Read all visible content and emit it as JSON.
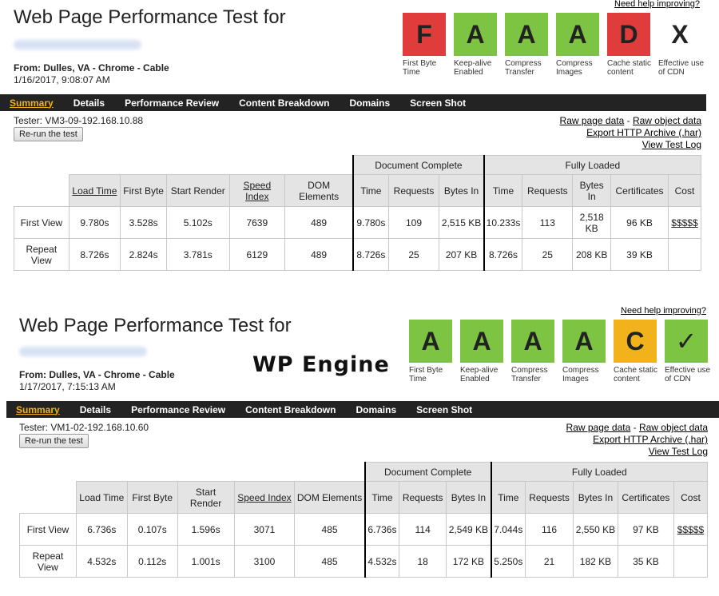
{
  "panels": [
    {
      "title": "Web Page Performance Test for",
      "from_label": "From:",
      "from_value": "Dulles, VA - Chrome - Cable",
      "date": "1/16/2017, 9:08:07 AM",
      "help_link": "Need help improving?",
      "grades": [
        {
          "grade": "F",
          "label": "First Byte Time",
          "color": "#e03c3c"
        },
        {
          "grade": "A",
          "label": "Keep-alive Enabled",
          "color": "#7dc442"
        },
        {
          "grade": "A",
          "label": "Compress Transfer",
          "color": "#7dc442"
        },
        {
          "grade": "A",
          "label": "Compress Images",
          "color": "#7dc442"
        },
        {
          "grade": "D",
          "label": "Cache static content",
          "color": "#e03c3c"
        },
        {
          "grade": "X",
          "label": "Effective use of CDN",
          "color": "#ffffff"
        }
      ],
      "nav": [
        "Summary",
        "Details",
        "Performance Review",
        "Content Breakdown",
        "Domains",
        "Screen Shot"
      ],
      "tester": "Tester: VM3-09-192.168.10.88",
      "rerun": "Re-run the test",
      "links": {
        "raw_page": "Raw page data",
        "sep": " - ",
        "raw_object": "Raw object data",
        "export": "Export HTTP Archive (.har)",
        "log": "View Test Log"
      },
      "table": {
        "groups": {
          "doc": "Document Complete",
          "full": "Fully Loaded"
        },
        "headers": [
          "Load Time",
          "First Byte",
          "Start Render",
          "Speed Index",
          "DOM Elements",
          "Time",
          "Requests",
          "Bytes In",
          "Time",
          "Requests",
          "Bytes In",
          "Certificates",
          "Cost"
        ],
        "rows": [
          {
            "label": "First View",
            "cells": [
              "9.780s",
              "3.528s",
              "5.102s",
              "7639",
              "489",
              "9.780s",
              "109",
              "2,515 KB",
              "10.233s",
              "113",
              "2,518 KB",
              "96 KB",
              "$$$$$"
            ]
          },
          {
            "label": "Repeat View",
            "cells": [
              "8.726s",
              "2.824s",
              "3.781s",
              "6129",
              "489",
              "8.726s",
              "25",
              "207 KB",
              "8.726s",
              "25",
              "208 KB",
              "39 KB",
              ""
            ]
          }
        ]
      }
    },
    {
      "title": "Web Page Performance Test for",
      "from_label": "From:",
      "from_value": "Dulles, VA - Chrome - Cable",
      "date": "1/17/2017, 7:15:13 AM",
      "help_link": "Need help improving?",
      "brand": "WP Engine",
      "grades": [
        {
          "grade": "A",
          "label": "First Byte Time",
          "color": "#7dc442"
        },
        {
          "grade": "A",
          "label": "Keep-alive Enabled",
          "color": "#7dc442"
        },
        {
          "grade": "A",
          "label": "Compress Transfer",
          "color": "#7dc442"
        },
        {
          "grade": "A",
          "label": "Compress Images",
          "color": "#7dc442"
        },
        {
          "grade": "C",
          "label": "Cache static content",
          "color": "#f2b21b"
        },
        {
          "grade": "✓",
          "label": "Effective use of CDN",
          "color": "#7dc442"
        }
      ],
      "nav": [
        "Summary",
        "Details",
        "Performance Review",
        "Content Breakdown",
        "Domains",
        "Screen Shot"
      ],
      "tester": "Tester: VM1-02-192.168.10.60",
      "rerun": "Re-run the test",
      "links": {
        "raw_page": "Raw page data",
        "sep": " - ",
        "raw_object": "Raw object data",
        "export": "Export HTTP Archive (.har)",
        "log": "View Test Log"
      },
      "table": {
        "groups": {
          "doc": "Document Complete",
          "full": "Fully Loaded"
        },
        "headers": [
          "Load Time",
          "First Byte",
          "Start Render",
          "Speed Index",
          "DOM Elements",
          "Time",
          "Requests",
          "Bytes In",
          "Time",
          "Requests",
          "Bytes In",
          "Certificates",
          "Cost"
        ],
        "rows": [
          {
            "label": "First View",
            "cells": [
              "6.736s",
              "0.107s",
              "1.596s",
              "3071",
              "485",
              "6.736s",
              "114",
              "2,549 KB",
              "7.044s",
              "116",
              "2,550 KB",
              "97 KB",
              "$$$$$"
            ]
          },
          {
            "label": "Repeat View",
            "cells": [
              "4.532s",
              "0.112s",
              "1.001s",
              "3100",
              "485",
              "4.532s",
              "18",
              "172 KB",
              "5.250s",
              "21",
              "182 KB",
              "35 KB",
              ""
            ]
          }
        ]
      }
    }
  ]
}
